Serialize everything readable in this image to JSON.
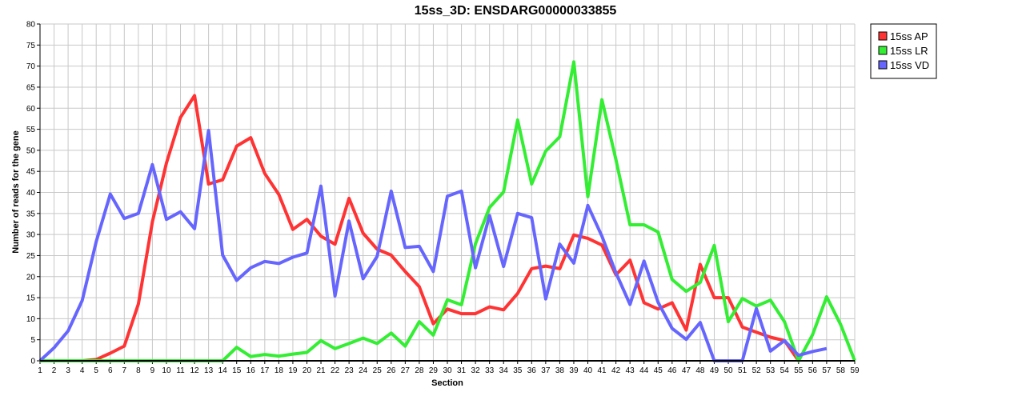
{
  "chart_data": {
    "type": "line",
    "title": "15ss_3D: ENSDARG00000033855",
    "xlabel": "Section",
    "ylabel": "Number of reads for the gene",
    "xlim": [
      1,
      59
    ],
    "ylim": [
      0,
      80
    ],
    "yticks": [
      0,
      5,
      10,
      15,
      20,
      25,
      30,
      35,
      40,
      45,
      50,
      55,
      60,
      65,
      70,
      75,
      80
    ],
    "x": [
      1,
      2,
      3,
      4,
      5,
      6,
      7,
      8,
      9,
      10,
      11,
      12,
      13,
      14,
      15,
      16,
      17,
      18,
      19,
      20,
      21,
      22,
      23,
      24,
      25,
      26,
      27,
      28,
      29,
      30,
      31,
      32,
      33,
      34,
      35,
      36,
      37,
      38,
      39,
      40,
      41,
      42,
      43,
      44,
      45,
      46,
      47,
      48,
      49,
      50,
      51,
      52,
      53,
      54,
      55,
      56,
      57,
      58,
      59
    ],
    "grid": true,
    "legend_position": "right",
    "series": [
      {
        "name": "15ss AP",
        "color": "#ff3333",
        "values": [
          0,
          0,
          0,
          0,
          0.3,
          1.8,
          3.5,
          13.5,
          33,
          47,
          57.8,
          63,
          42,
          43,
          51,
          53,
          44.5,
          39.5,
          31.2,
          33.6,
          29.6,
          27.7,
          38.6,
          30.3,
          26.5,
          25.1,
          21.2,
          17.6,
          8.8,
          12.3,
          11.2,
          11.2,
          12.8,
          12.1,
          16,
          21.9,
          22.5,
          21.9,
          29.9,
          29.1,
          27.5,
          20.4,
          23.9,
          13.8,
          12.3,
          13.8,
          7.3,
          22.9,
          15,
          15,
          8,
          6.8,
          5.6,
          4.8,
          0,
          null,
          null,
          null,
          null
        ]
      },
      {
        "name": "15ss LR",
        "color": "#33ee33",
        "values": [
          0,
          0,
          0,
          0,
          0,
          0,
          0,
          0,
          0,
          0,
          0,
          0,
          0,
          0,
          3.2,
          1,
          1.5,
          1.1,
          1.6,
          2,
          4.8,
          2.9,
          4.1,
          5.4,
          4.1,
          6.6,
          3.5,
          9.3,
          6.1,
          14.5,
          13.3,
          27.8,
          36.4,
          40.1,
          57.2,
          42,
          49.8,
          53.2,
          71,
          39,
          62,
          47.8,
          32.3,
          32.3,
          30.6,
          19.3,
          16.5,
          18.6,
          27.4,
          9.3,
          14.8,
          13,
          14.4,
          9.3,
          0,
          6.2,
          15.2,
          8.6,
          0
        ]
      },
      {
        "name": "15ss VD",
        "color": "#6666ff",
        "values": [
          0,
          3.1,
          7.1,
          14.3,
          28.3,
          39.6,
          33.8,
          35,
          46.6,
          33.6,
          35.4,
          31.4,
          54.7,
          25.1,
          19.1,
          22.1,
          23.6,
          23.1,
          24.6,
          25.6,
          41.5,
          15.4,
          33.2,
          19.5,
          24.8,
          40.3,
          26.9,
          27.2,
          21.2,
          39.1,
          40.3,
          22.1,
          34.5,
          22.4,
          35,
          34,
          14.7,
          27.7,
          23.2,
          36.9,
          29.6,
          20.9,
          13.4,
          23.7,
          13.9,
          7.7,
          5.1,
          9.1,
          0,
          0,
          0,
          12.4,
          2.3,
          4.8,
          1.3,
          2.2,
          2.9,
          null,
          null
        ]
      }
    ]
  }
}
